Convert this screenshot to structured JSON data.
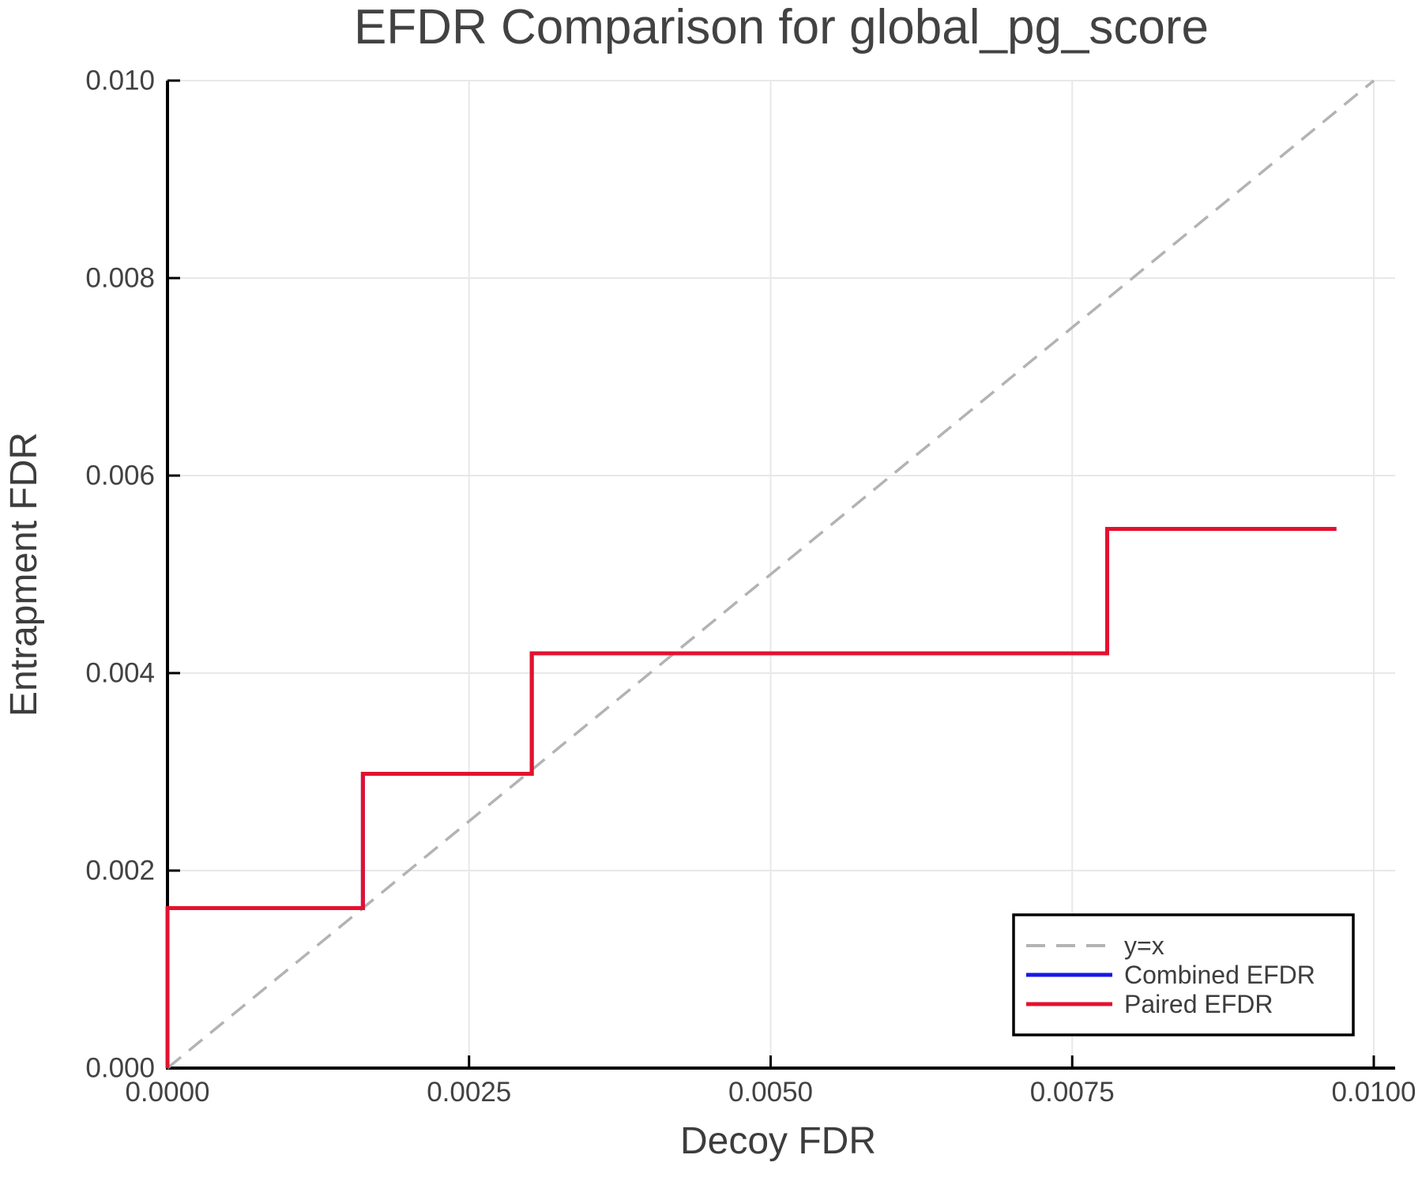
{
  "chart_data": {
    "type": "line",
    "title": "EFDR Comparison for global_pg_score",
    "xlabel": "Decoy FDR",
    "ylabel": "Entrapment FDR",
    "xlim": [
      0,
      0.010177
    ],
    "ylim": [
      0,
      0.01
    ],
    "grid": true,
    "legend_position": "lower right",
    "xticks": {
      "values": [
        0.0,
        0.0025,
        0.005,
        0.0075,
        0.01
      ],
      "labels": [
        "0.0000",
        "0.0025",
        "0.0050",
        "0.0075",
        "0.0100"
      ]
    },
    "yticks": {
      "values": [
        0.0,
        0.002,
        0.004,
        0.006,
        0.008,
        0.01
      ],
      "labels": [
        "0.000",
        "0.002",
        "0.004",
        "0.006",
        "0.008",
        "0.010"
      ]
    },
    "series": [
      {
        "name": "y=x",
        "color": "#b3b3b3",
        "style": "dashed",
        "width": 3.5,
        "points": [
          [
            0.0,
            0.0
          ],
          [
            0.01,
            0.01
          ]
        ]
      },
      {
        "name": "Combined EFDR",
        "color": "#1717e8",
        "style": "solid",
        "width": 5,
        "points": [
          [
            0.0,
            0.0
          ],
          [
            0.0,
            0.00162
          ],
          [
            0.00162,
            0.00162
          ],
          [
            0.00162,
            0.00298
          ],
          [
            0.00302,
            0.00298
          ],
          [
            0.00302,
            0.0042
          ],
          [
            0.00779,
            0.0042
          ],
          [
            0.00779,
            0.00546
          ],
          [
            0.00969,
            0.00546
          ]
        ]
      },
      {
        "name": "Paired EFDR",
        "color": "#e4112e",
        "style": "solid",
        "width": 5,
        "points": [
          [
            0.0,
            0.0
          ],
          [
            0.0,
            0.00162
          ],
          [
            0.00162,
            0.00162
          ],
          [
            0.00162,
            0.00298
          ],
          [
            0.00302,
            0.00298
          ],
          [
            0.00302,
            0.0042
          ],
          [
            0.00779,
            0.0042
          ],
          [
            0.00779,
            0.00546
          ],
          [
            0.00969,
            0.00546
          ]
        ]
      }
    ],
    "style_colors": {
      "grid": "#e8e8e8",
      "spine": "#000000",
      "tick": "#000000",
      "background": "#ffffff"
    }
  }
}
